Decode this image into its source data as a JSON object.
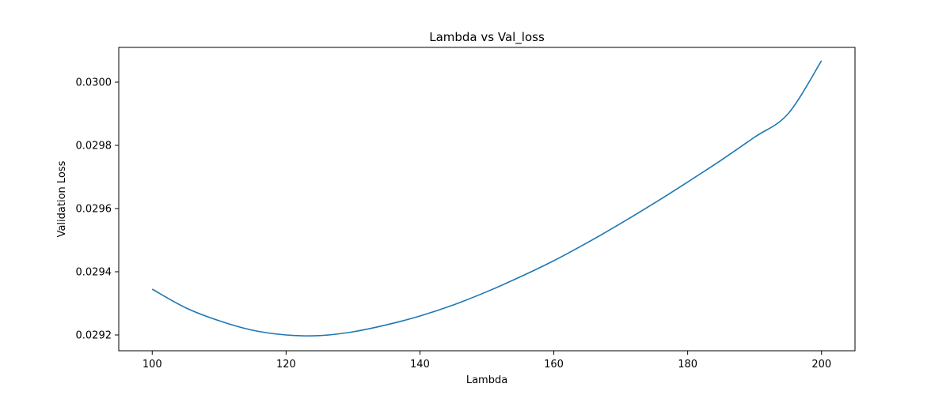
{
  "chart_data": {
    "type": "line",
    "title": "Lambda vs Val_loss",
    "xlabel": "Lambda",
    "ylabel": "Validation Loss",
    "xlim": [
      95,
      205
    ],
    "ylim": [
      0.02915,
      0.03011
    ],
    "x_ticks": [
      100,
      120,
      140,
      160,
      180,
      200
    ],
    "x_tick_labels": [
      "100",
      "120",
      "140",
      "160",
      "180",
      "200"
    ],
    "y_ticks": [
      0.0292,
      0.0294,
      0.0296,
      0.0298,
      0.03
    ],
    "y_tick_labels": [
      "0.0292",
      "0.0294",
      "0.0296",
      "0.0298",
      "0.0300"
    ],
    "grid": false,
    "series": [
      {
        "color": "#1f77b4",
        "x": [
          100,
          105,
          110,
          115,
          120,
          125,
          130,
          135,
          140,
          145,
          150,
          155,
          160,
          165,
          170,
          175,
          180,
          185,
          190,
          195,
          200
        ],
        "y": [
          0.029345,
          0.029286,
          0.029245,
          0.029215,
          0.0292,
          0.029198,
          0.02921,
          0.029232,
          0.02926,
          0.029295,
          0.029337,
          0.029384,
          0.029435,
          0.029492,
          0.029553,
          0.029617,
          0.029684,
          0.029753,
          0.029826,
          0.0299,
          0.030068
        ]
      }
    ]
  }
}
